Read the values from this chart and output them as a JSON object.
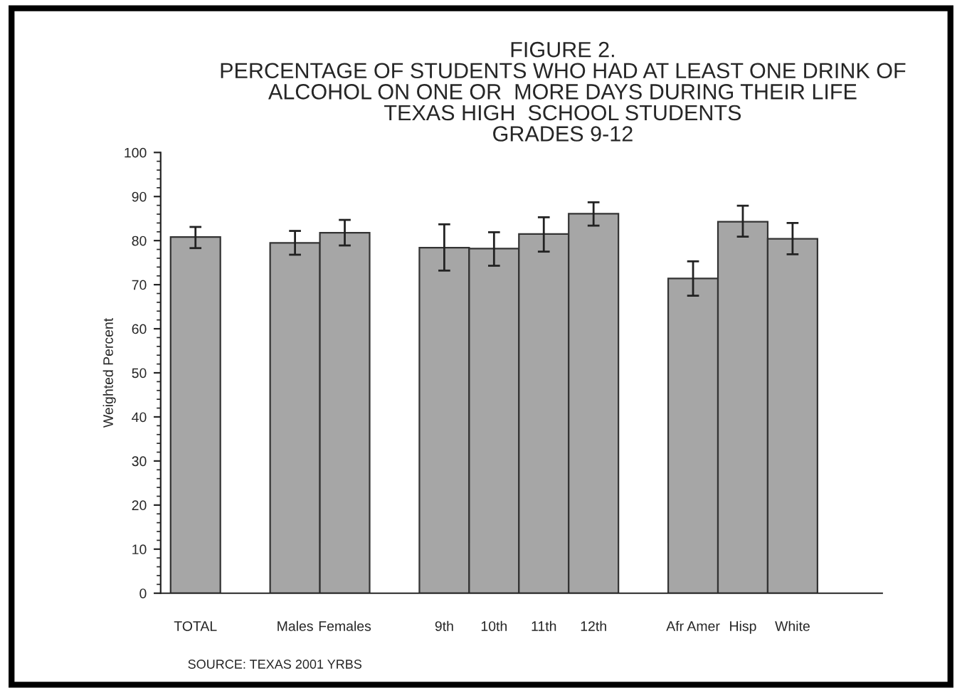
{
  "chart_data": {
    "type": "bar",
    "title": "FIGURE 2.\nPERCENTAGE OF STUDENTS WHO HAD AT LEAST ONE DRINK OF\nALCOHOL ON ONE OR  MORE DAYS DURING THEIR LIFE\nTEXAS HIGH  SCHOOL STUDENTS\nGRADES 9-12",
    "ylabel": "Weighted Percent",
    "categories": [
      "TOTAL",
      null,
      "Males",
      "Females",
      null,
      "9th",
      "10th",
      "11th",
      "12th",
      null,
      "Afr Amer",
      "Hisp",
      "White"
    ],
    "values": [
      80.8,
      null,
      79.5,
      81.8,
      null,
      78.4,
      78.2,
      81.5,
      86.1,
      null,
      71.4,
      84.3,
      80.4
    ],
    "errors": [
      [
        78.3,
        83.1
      ],
      null,
      [
        76.8,
        82.2
      ],
      [
        78.9,
        84.7
      ],
      null,
      [
        73.2,
        83.7
      ],
      [
        74.3,
        81.9
      ],
      [
        77.5,
        85.3
      ],
      [
        83.4,
        88.7
      ],
      null,
      [
        67.5,
        75.3
      ],
      [
        80.9,
        87.9
      ],
      [
        76.9,
        84.0
      ]
    ],
    "color": "#a6a6a6",
    "ylim": [
      0,
      100
    ],
    "yticks": [
      0,
      10,
      20,
      30,
      40,
      50,
      60,
      70,
      80,
      90,
      100
    ],
    "grid": false,
    "legend": false,
    "annotations": [
      "SOURCE: TEXAS 2001 YRBS"
    ]
  }
}
